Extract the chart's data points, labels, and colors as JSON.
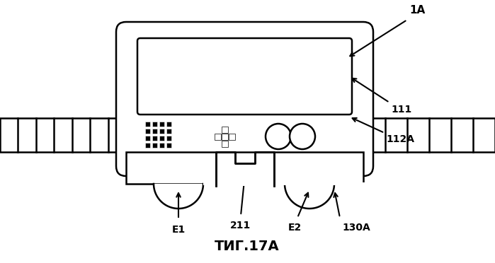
{
  "title": "ΤИГ.17А",
  "label_1A": "1А",
  "label_111": "111",
  "label_112A": "112А",
  "label_211": "211",
  "label_E1": "Е1",
  "label_E2": "Е2",
  "label_130A": "130А",
  "bg_color": "#ffffff",
  "line_color": "#000000",
  "fig_width": 6.99,
  "fig_height": 3.72
}
